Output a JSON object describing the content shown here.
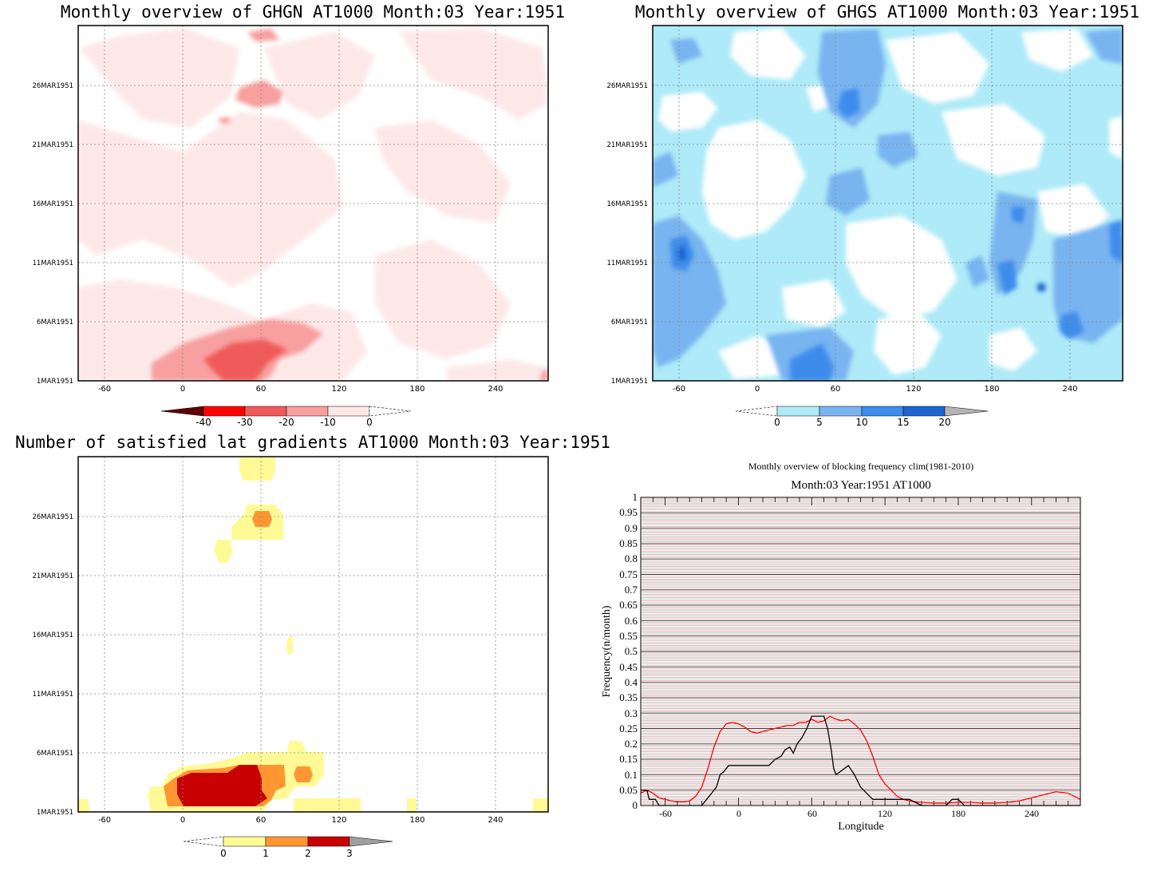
{
  "chart_data": [
    {
      "type": "heatmap",
      "title": "Monthly overview of GHGN AT1000 Month:03 Year:1951",
      "x_ticks": [
        "-60",
        "0",
        "60",
        "120",
        "180",
        "240"
      ],
      "y_ticks": [
        "1MAR1951",
        "6MAR1951",
        "11MAR1951",
        "16MAR1951",
        "21MAR1951",
        "26MAR1951"
      ],
      "xlim": [
        -80,
        280
      ],
      "ylim": [
        1,
        31
      ],
      "grid": true,
      "colorbar": {
        "labels": [
          "-40",
          "-30",
          "-20",
          "-10",
          "0"
        ],
        "colors": [
          "#600000",
          "#ff0000",
          "#f15a5a",
          "#f89f9f",
          "#fde8e8",
          "#ffffff"
        ]
      }
    },
    {
      "type": "heatmap",
      "title": "Monthly overview of GHGS AT1000 Month:03 Year:1951",
      "x_ticks": [
        "-60",
        "0",
        "60",
        "120",
        "180",
        "240"
      ],
      "y_ticks": [
        "1MAR1951",
        "6MAR1951",
        "11MAR1951",
        "16MAR1951",
        "21MAR1951",
        "26MAR1951"
      ],
      "xlim": [
        -80,
        280
      ],
      "ylim": [
        1,
        31
      ],
      "grid": true,
      "colorbar": {
        "labels": [
          "0",
          "5",
          "10",
          "15",
          "20"
        ],
        "colors": [
          "#ffffff",
          "#aeeaf7",
          "#78b4f0",
          "#3c8cec",
          "#1c64d2",
          "#b4b4b4"
        ]
      }
    },
    {
      "type": "heatmap",
      "title": "Number of satisfied lat gradients AT1000 Month:03 Year:1951",
      "x_ticks": [
        "-60",
        "0",
        "60",
        "120",
        "180",
        "240"
      ],
      "y_ticks": [
        "1MAR1951",
        "6MAR1951",
        "11MAR1951",
        "16MAR1951",
        "21MAR1951",
        "26MAR1951"
      ],
      "xlim": [
        -80,
        280
      ],
      "ylim": [
        1,
        31
      ],
      "grid": true,
      "colorbar": {
        "labels": [
          "0",
          "1",
          "2",
          "3"
        ],
        "colors": [
          "#ffffff",
          "#fffa96",
          "#ff9632",
          "#c80000",
          "#a0a0a0"
        ]
      }
    },
    {
      "type": "line",
      "title": "Monthly overview of blocking frequency clim(1981-2010)",
      "subtitle": "Month:03 Year:1951  AT1000",
      "xlabel": "Longitude",
      "ylabel": "Frequency(n/month)",
      "xlim": [
        -80,
        280
      ],
      "ylim": [
        0,
        1
      ],
      "x_ticks": [
        "-60",
        "0",
        "60",
        "120",
        "180",
        "240"
      ],
      "y_ticks": [
        "0",
        "0.05",
        "0.1",
        "0.15",
        "0.2",
        "0.25",
        "0.3",
        "0.35",
        "0.4",
        "0.45",
        "0.5",
        "0.55",
        "0.6",
        "0.65",
        "0.7",
        "0.75",
        "0.8",
        "0.85",
        "0.9",
        "0.95",
        "1"
      ],
      "series": [
        {
          "color": "#ff0000",
          "x": [
            -80,
            -75,
            -70,
            -65,
            -60,
            -55,
            -50,
            -45,
            -40,
            -35,
            -30,
            -25,
            -20,
            -15,
            -10,
            -5,
            0,
            5,
            10,
            15,
            20,
            25,
            30,
            35,
            40,
            45,
            50,
            55,
            60,
            65,
            70,
            75,
            80,
            85,
            90,
            95,
            100,
            105,
            110,
            115,
            120,
            125,
            130,
            135,
            140,
            145,
            150,
            160,
            170,
            180,
            190,
            200,
            210,
            220,
            230,
            240,
            250,
            260,
            270,
            280
          ],
          "y": [
            0.04,
            0.05,
            0.04,
            0.025,
            0.02,
            0.015,
            0.012,
            0.012,
            0.015,
            0.03,
            0.06,
            0.12,
            0.19,
            0.24,
            0.265,
            0.27,
            0.265,
            0.255,
            0.24,
            0.235,
            0.24,
            0.245,
            0.25,
            0.255,
            0.26,
            0.26,
            0.27,
            0.27,
            0.28,
            0.27,
            0.275,
            0.29,
            0.28,
            0.275,
            0.28,
            0.265,
            0.245,
            0.21,
            0.16,
            0.1,
            0.07,
            0.05,
            0.03,
            0.02,
            0.015,
            0.012,
            0.01,
            0.008,
            0.008,
            0.01,
            0.01,
            0.008,
            0.008,
            0.01,
            0.015,
            0.025,
            0.035,
            0.045,
            0.04,
            0.02
          ]
        },
        {
          "color": "#000000",
          "x": [
            -80,
            -75,
            -73,
            -68,
            -65,
            -60,
            -40,
            -30,
            -26,
            -22,
            -18,
            -15,
            -12,
            -8,
            -5,
            5,
            10,
            25,
            30,
            35,
            38,
            42,
            45,
            48,
            52,
            56,
            60,
            65,
            70,
            73,
            76,
            78,
            80,
            90,
            95,
            100,
            110,
            120,
            130,
            140,
            150,
            170,
            175,
            180,
            185,
            190,
            280
          ],
          "y": [
            0.05,
            0.05,
            0.02,
            0.02,
            0,
            0,
            0,
            0,
            0.02,
            0.04,
            0.06,
            0.1,
            0.11,
            0.13,
            0.13,
            0.13,
            0.13,
            0.13,
            0.15,
            0.16,
            0.18,
            0.19,
            0.17,
            0.2,
            0.22,
            0.25,
            0.29,
            0.29,
            0.29,
            0.25,
            0.18,
            0.12,
            0.1,
            0.13,
            0.1,
            0.06,
            0.02,
            0.02,
            0.02,
            0.02,
            0,
            0,
            0.02,
            0.02,
            0,
            0,
            0
          ]
        }
      ]
    }
  ]
}
